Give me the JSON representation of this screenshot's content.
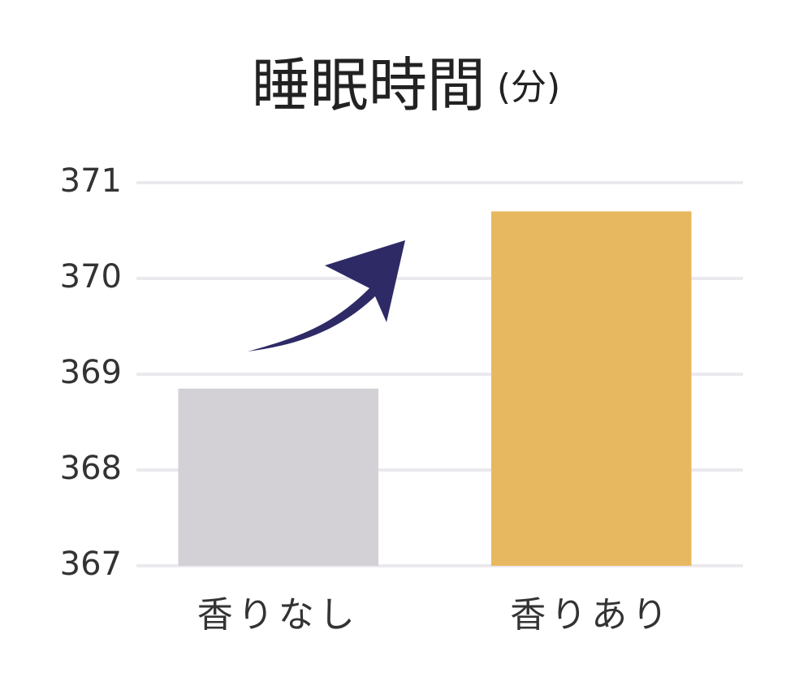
{
  "chart_data": {
    "type": "bar",
    "title": "睡眠時間",
    "title_unit": "(分)",
    "categories": [
      "香りなし",
      "香りあり"
    ],
    "values": [
      368.85,
      370.7
    ],
    "colors": [
      "#d3d1d5",
      "#e8b860"
    ],
    "ylim": [
      367,
      371
    ],
    "yticks": [
      367,
      368,
      369,
      370,
      371
    ],
    "grid": true
  }
}
